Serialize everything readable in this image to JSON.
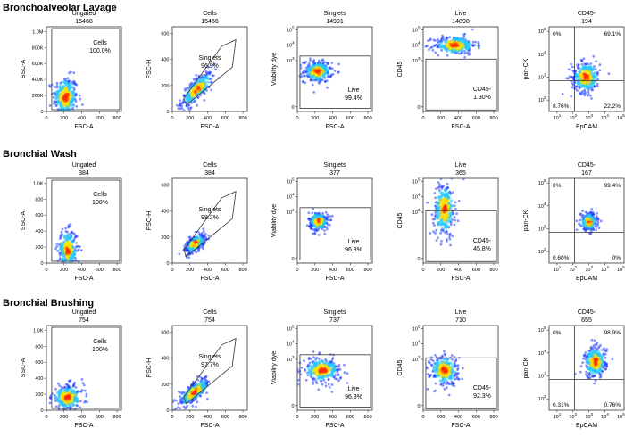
{
  "chart_data": {
    "type": "density-scatter",
    "title": "Flow cytometry gating of airway samples",
    "colors": {
      "low": "#1f3cff",
      "mid": "#22c7ff",
      "high": "#ffe000",
      "peak": "#ff2a00",
      "gate": "#333333"
    },
    "rows": [
      {
        "label": "Bronchoalveolar Lavage",
        "plots": [
          {
            "title": "Ungated",
            "count": "15468",
            "xlabel": "FSC-A",
            "ylabel": "SSC-A",
            "xscale": "lin",
            "yscale": "lin",
            "xticks": [
              "0",
              "200",
              "400",
              "600",
              "800"
            ],
            "yticks": [
              "0",
              "200K",
              "400K",
              "600K",
              "800K",
              "1.0M"
            ],
            "gate": "rect",
            "gate_label": "Cells",
            "gate_pct": "100.0%",
            "population": {
              "cx": 215,
              "cy": 180,
              "sx": 70,
              "sy": 130,
              "peak_x": 170,
              "peak_y": 160
            }
          },
          {
            "title": "Cells",
            "count": "15466",
            "xlabel": "FSC-A",
            "ylabel": "FSC-H",
            "xscale": "lin",
            "yscale": "lin",
            "xticks": [
              "0",
              "200",
              "400",
              "600",
              "800"
            ],
            "yticks": [
              "0",
              "200",
              "400",
              "600"
            ],
            "gate": "polygon",
            "gate_label": "Singlets",
            "gate_pct": "96.9%",
            "population": {
              "cx": 280,
              "cy": 170,
              "sx": 90,
              "sy": 45,
              "slope": 0.55
            }
          },
          {
            "title": "Singlets",
            "count": "14991",
            "xlabel": "FSC-A",
            "ylabel": "Viability dye",
            "xscale": "lin",
            "yscale": "log",
            "xticks": [
              "0",
              "200",
              "400",
              "600",
              "800"
            ],
            "yticks": [
              "0",
              "10^3",
              "10^4",
              "10^5"
            ],
            "gate": "live",
            "gate_label": "Live",
            "gate_pct": "99.4%",
            "population": {
              "cx": 230,
              "cy": 2.3,
              "sx": 80,
              "sy": 0.35
            }
          },
          {
            "title": "Live",
            "count": "14898",
            "xlabel": "FSC-A",
            "ylabel": "CD45",
            "xscale": "lin",
            "yscale": "log",
            "xticks": [
              "0",
              "200",
              "400",
              "600",
              "800"
            ],
            "yticks": [
              "0",
              "10^3",
              "10^4",
              "10^5"
            ],
            "gate": "cd45",
            "gate_label": "CD45-",
            "gate_pct": "1.30%",
            "population": {
              "cx": 360,
              "cy": 4.0,
              "sx": 120,
              "sy": 0.3
            }
          },
          {
            "title": "CD45-",
            "count": "194",
            "xlabel": "EpCAM",
            "ylabel": "pan-CK",
            "xscale": "log",
            "yscale": "log",
            "xticks": [
              "10^1",
              "10^2",
              "10^3",
              "10^4",
              "10^5"
            ],
            "yticks": [
              "10^2",
              "10^3",
              "10^4",
              "10^5"
            ],
            "gate": "quad",
            "quadrants": [
              "0%",
              "69.1%",
              "8.76%",
              "22.2%"
            ],
            "population": {
              "cx": 2.8,
              "cy": 3.0,
              "sx": 0.45,
              "sy": 0.35
            }
          }
        ]
      },
      {
        "label": "Bronchial Wash",
        "plots": [
          {
            "title": "Ungated",
            "count": "384",
            "xlabel": "FSC-A",
            "ylabel": "SSC-A",
            "xscale": "lin",
            "yscale": "lin",
            "xticks": [
              "0",
              "200",
              "400",
              "600",
              "800"
            ],
            "yticks": [
              "0",
              "200",
              "400",
              "600",
              "800",
              "1.0K"
            ],
            "gate": "rect",
            "gate_label": "Cells",
            "gate_pct": "100%",
            "population": {
              "cx": 240,
              "cy": 170,
              "sx": 55,
              "sy": 120
            }
          },
          {
            "title": "Cells",
            "count": "384",
            "xlabel": "FSC-A",
            "ylabel": "FSC-H",
            "xscale": "lin",
            "yscale": "lin",
            "xticks": [
              "0",
              "200",
              "400",
              "600",
              "800"
            ],
            "yticks": [
              "0",
              "200",
              "400",
              "600"
            ],
            "gate": "polygon",
            "gate_label": "Singlets",
            "gate_pct": "98.2%",
            "population": {
              "cx": 260,
              "cy": 150,
              "sx": 60,
              "sy": 30,
              "slope": 0.4
            }
          },
          {
            "title": "Singlets",
            "count": "377",
            "xlabel": "FSC-A",
            "ylabel": "Viability dye",
            "xscale": "lin",
            "yscale": "log",
            "xticks": [
              "0",
              "200",
              "400",
              "600",
              "800"
            ],
            "yticks": [
              "0",
              "10^3",
              "10^4",
              "10^5"
            ],
            "gate": "live",
            "gate_label": "Live",
            "gate_pct": "96.8%",
            "population": {
              "cx": 240,
              "cy": 2.4,
              "sx": 55,
              "sy": 0.3
            }
          },
          {
            "title": "Live",
            "count": "365",
            "xlabel": "FSC-A",
            "ylabel": "CD45",
            "xscale": "lin",
            "yscale": "log",
            "xticks": [
              "0",
              "200",
              "400",
              "600",
              "800"
            ],
            "yticks": [
              "0",
              "10^3",
              "10^4",
              "10^5"
            ],
            "gate": "cd45",
            "gate_label": "CD45-",
            "gate_pct": "45.8%",
            "population": {
              "cx": 240,
              "cy": 3.2,
              "sx": 60,
              "sy": 0.9
            }
          },
          {
            "title": "CD45-",
            "count": "167",
            "xlabel": "EpCAM",
            "ylabel": "pan-CK",
            "xscale": "log",
            "yscale": "log",
            "xticks": [
              "10^1",
              "10^2",
              "10^3",
              "10^4",
              "10^5"
            ],
            "yticks": [
              "10^2",
              "10^3",
              "10^4",
              "10^5"
            ],
            "gate": "quad",
            "quadrants": [
              "0%",
              "99.4%",
              "0.60%",
              "0%"
            ],
            "population": {
              "cx": 3.0,
              "cy": 3.3,
              "sx": 0.25,
              "sy": 0.2
            }
          }
        ]
      },
      {
        "label": "Bronchial Brushing",
        "plots": [
          {
            "title": "Ungated",
            "count": "754",
            "xlabel": "FSC-A",
            "ylabel": "SSC-A",
            "xscale": "lin",
            "yscale": "lin",
            "xticks": [
              "0",
              "200",
              "400",
              "600",
              "800"
            ],
            "yticks": [
              "0",
              "200",
              "400",
              "600",
              "800",
              "1.0K"
            ],
            "gate": "rect",
            "gate_label": "Cells",
            "gate_pct": "100%",
            "population": {
              "cx": 240,
              "cy": 160,
              "sx": 90,
              "sy": 80
            }
          },
          {
            "title": "Cells",
            "count": "754",
            "xlabel": "FSC-A",
            "ylabel": "FSC-H",
            "xscale": "lin",
            "yscale": "lin",
            "xticks": [
              "0",
              "200",
              "400",
              "600",
              "800"
            ],
            "yticks": [
              "0",
              "200",
              "400",
              "600"
            ],
            "gate": "polygon",
            "gate_label": "Singlets",
            "gate_pct": "97.7%",
            "population": {
              "cx": 250,
              "cy": 140,
              "sx": 90,
              "sy": 35,
              "slope": 0.45
            }
          },
          {
            "title": "Singlets",
            "count": "737",
            "xlabel": "FSC-A",
            "ylabel": "Viability dye",
            "xscale": "lin",
            "yscale": "log",
            "xticks": [
              "0",
              "200",
              "400",
              "600",
              "800"
            ],
            "yticks": [
              "0",
              "10^3",
              "10^4",
              "10^5"
            ],
            "gate": "live",
            "gate_label": "Live",
            "gate_pct": "96.3%",
            "population": {
              "cx": 280,
              "cy": 2.3,
              "sx": 110,
              "sy": 0.4
            }
          },
          {
            "title": "Live",
            "count": "710",
            "xlabel": "FSC-A",
            "ylabel": "CD45",
            "xscale": "lin",
            "yscale": "log",
            "xticks": [
              "0",
              "200",
              "400",
              "600",
              "800"
            ],
            "yticks": [
              "0",
              "10^3",
              "10^4",
              "10^5"
            ],
            "gate": "cd45",
            "gate_label": "CD45-",
            "gate_pct": "92.3%",
            "population": {
              "cx": 240,
              "cy": 2.3,
              "sx": 80,
              "sy": 0.5
            }
          },
          {
            "title": "CD45-",
            "count": "655",
            "xlabel": "EpCAM",
            "ylabel": "pan-CK",
            "xscale": "log",
            "yscale": "log",
            "xticks": [
              "10^1",
              "10^2",
              "10^3",
              "10^4",
              "10^5"
            ],
            "yticks": [
              "10^2",
              "10^3",
              "10^4",
              "10^5"
            ],
            "gate": "quad",
            "quadrants": [
              "0%",
              "98.9%",
              "0.31%",
              "0.76%"
            ],
            "population": {
              "cx": 3.4,
              "cy": 3.6,
              "sx": 0.35,
              "sy": 0.35
            }
          }
        ]
      }
    ]
  }
}
